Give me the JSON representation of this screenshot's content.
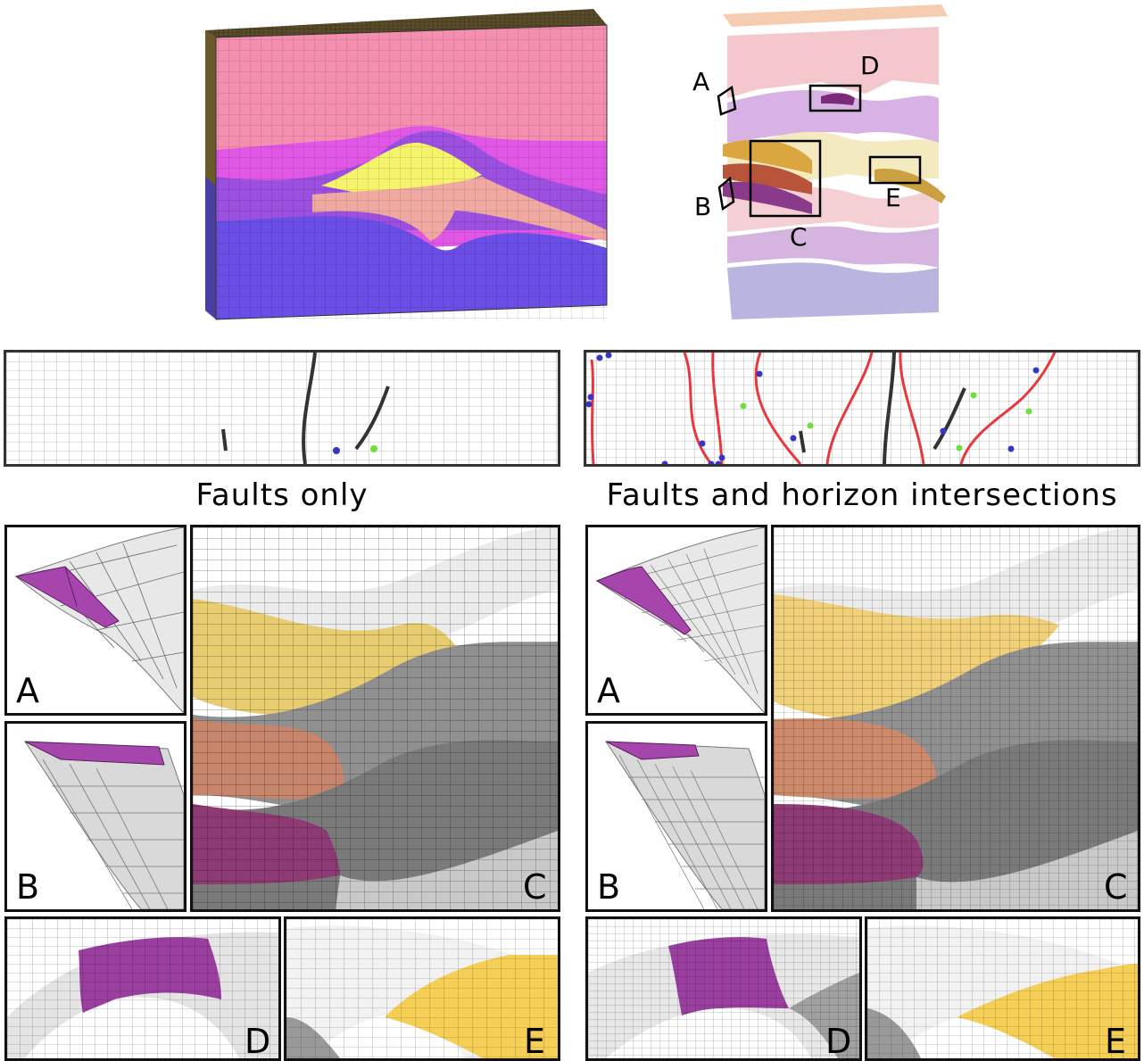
{
  "captions": {
    "left": "Faults only",
    "right": "Faults and horizon intersections"
  },
  "overview_labels": {
    "A": "A",
    "B": "B",
    "C": "C",
    "D": "D",
    "E": "E"
  },
  "left_group": {
    "A": "A",
    "B": "B",
    "C": "C",
    "D": "D",
    "E": "E"
  },
  "right_group": {
    "A": "A",
    "B": "B",
    "C": "C",
    "D": "D",
    "E": "E"
  },
  "colors": {
    "pink_layer": "#f58fb0",
    "magenta_layer": "#e057e6",
    "blue_layer": "#6a4ee6",
    "yellow_layer": "#f4f36a",
    "fault_red": "#e8383d",
    "point_blue": "#3535c8",
    "point_green": "#6de03c",
    "patch_purple": "#a645ab",
    "patch_yellow": "#f5cf55",
    "patch_salmon": "#d98a6b"
  }
}
